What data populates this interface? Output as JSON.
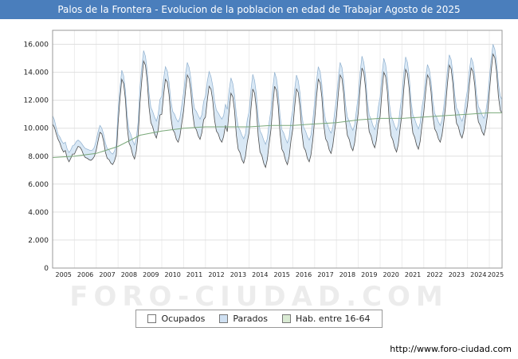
{
  "title": "Palos de la Frontera - Evolucion de la poblacion en edad de Trabajar Agosto de 2025",
  "title_bar_color": "#4a7ebc",
  "watermark": "FORO-CIUDAD.COM",
  "footer": {
    "url": "http://www.foro-ciudad.com"
  },
  "legend": [
    {
      "label": "Ocupados",
      "color": "#ffffff"
    },
    {
      "label": "Parados",
      "color": "#cfe0f2"
    },
    {
      "label": "Hab. entre 16-64",
      "color": "#d9ead3"
    }
  ],
  "chart_data": {
    "type": "area",
    "title": "Palos de la Frontera - Evolucion de la poblacion en edad de Trabajar Agosto de 2025",
    "x_start": "2005-01",
    "x_end": "2025-08",
    "x_tick_labels": [
      "2005",
      "2006",
      "2007",
      "2008",
      "2009",
      "2010",
      "2011",
      "2012",
      "2013",
      "2014",
      "2015",
      "2016",
      "2017",
      "2018",
      "2019",
      "2020",
      "2021",
      "2022",
      "2023",
      "2024",
      "2025"
    ],
    "ylim": [
      0,
      17000
    ],
    "y_ticks": [
      0,
      2000,
      4000,
      6000,
      8000,
      10000,
      12000,
      14000,
      16000
    ],
    "y_tick_labels": [
      "0",
      "2.000",
      "4.000",
      "6.000",
      "8.000",
      "10.000",
      "12.000",
      "14.000",
      "16.000"
    ],
    "grid": true,
    "legend_position": "bottom",
    "colors": {
      "ocupados_line": "#4d4d4d",
      "parados_line": "#8fb0cf",
      "parados_fill": "#d9e8f5",
      "hab_line": "#7aa97a"
    },
    "series": [
      {
        "name": "Ocupados",
        "role": "lower-line",
        "monthly_values": [
          10300,
          10050,
          9600,
          9200,
          8950,
          8550,
          8300,
          8400,
          7850,
          7600,
          7850,
          8150,
          8150,
          8450,
          8700,
          8650,
          8450,
          8100,
          7900,
          7850,
          7750,
          7700,
          7800,
          8000,
          8450,
          9100,
          9700,
          9600,
          9100,
          8300,
          7850,
          7750,
          7500,
          7400,
          7650,
          8100,
          10350,
          12100,
          13500,
          13200,
          12100,
          10100,
          8950,
          8650,
          8100,
          7800,
          8350,
          9500,
          11800,
          13400,
          14800,
          14500,
          13400,
          11500,
          10400,
          10100,
          9600,
          9300,
          9850,
          10950,
          11000,
          12400,
          13500,
          13300,
          12400,
          10800,
          9900,
          9700,
          9200,
          9000,
          9450,
          10350,
          11250,
          12650,
          13800,
          13550,
          12650,
          11050,
          10100,
          9900,
          9450,
          9200,
          9650,
          10600,
          10800,
          12000,
          13000,
          12800,
          12000,
          10600,
          9800,
          9600,
          9200,
          9000,
          9400,
          10200,
          9750,
          11250,
          12500,
          12250,
          11250,
          9500,
          8500,
          8250,
          7750,
          7500,
          8000,
          9000,
          9700,
          11400,
          12800,
          12500,
          11400,
          9450,
          8300,
          8050,
          7500,
          7200,
          7750,
          8900,
          9900,
          11600,
          13000,
          12700,
          11600,
          9650,
          8500,
          8250,
          7700,
          7400,
          7950,
          9100,
          9950,
          11500,
          12800,
          12550,
          11500,
          9700,
          8650,
          8400,
          7850,
          7600,
          8100,
          9150,
          10600,
          12200,
          13500,
          13250,
          12200,
          10300,
          9250,
          9000,
          8450,
          8200,
          8750,
          9800,
          10850,
          12450,
          13800,
          13550,
          12450,
          10550,
          9500,
          9200,
          8650,
          8400,
          8950,
          10000,
          11150,
          12900,
          14300,
          14000,
          12900,
          10900,
          9750,
          9450,
          8900,
          8600,
          9150,
          10300,
          10850,
          12600,
          14000,
          13700,
          12600,
          10600,
          9450,
          9150,
          8600,
          8300,
          8850,
          10000,
          11050,
          12800,
          14200,
          13900,
          12800,
          10800,
          9650,
          9350,
          8800,
          8500,
          9050,
          10200,
          11150,
          12600,
          13800,
          13550,
          12600,
          10900,
          9950,
          9700,
          9250,
          9000,
          9500,
          10450,
          11650,
          13200,
          14500,
          14250,
          13200,
          11400,
          10350,
          10100,
          9550,
          9300,
          9800,
          10850,
          11650,
          13100,
          14300,
          14050,
          13100,
          11400,
          10450,
          10200,
          9750,
          9500,
          10000,
          10950,
          12550,
          14050,
          15300,
          15050,
          14050,
          12300,
          11300,
          11050
        ]
      },
      {
        "name": "Parados",
        "role": "stacked-band-on-Ocupados",
        "monthly_values": [
          600,
          540,
          420,
          360,
          420,
          540,
          600,
          600,
          660,
          660,
          600,
          600,
          650,
          600,
          450,
          400,
          450,
          600,
          650,
          650,
          700,
          700,
          650,
          650,
          700,
          650,
          500,
          400,
          500,
          650,
          700,
          700,
          750,
          750,
          700,
          700,
          900,
          800,
          650,
          550,
          650,
          800,
          900,
          900,
          1000,
          1000,
          900,
          900,
          1100,
          1000,
          750,
          650,
          750,
          1000,
          1100,
          1100,
          1200,
          1200,
          1100,
          1100,
          1300,
          1150,
          900,
          800,
          900,
          1150,
          1300,
          1300,
          1450,
          1450,
          1300,
          1300,
          1300,
          1150,
          900,
          800,
          900,
          1150,
          1300,
          1300,
          1450,
          1450,
          1300,
          1300,
          1500,
          1350,
          1050,
          900,
          1050,
          1350,
          1500,
          1500,
          1650,
          1650,
          1500,
          1500,
          1600,
          1450,
          1100,
          950,
          1100,
          1450,
          1600,
          1600,
          1750,
          1750,
          1600,
          1600,
          1500,
          1350,
          1050,
          900,
          1050,
          1350,
          1500,
          1500,
          1650,
          1650,
          1500,
          1500,
          1400,
          1250,
          1000,
          850,
          1000,
          1250,
          1400,
          1400,
          1550,
          1550,
          1400,
          1400,
          1400,
          1250,
          1000,
          850,
          1000,
          1250,
          1400,
          1400,
          1550,
          1550,
          1400,
          1400,
          1300,
          1150,
          900,
          800,
          900,
          1150,
          1300,
          1300,
          1450,
          1450,
          1300,
          1300,
          1300,
          1150,
          900,
          800,
          900,
          1150,
          1300,
          1300,
          1450,
          1450,
          1300,
          1300,
          1200,
          1100,
          850,
          700,
          850,
          1100,
          1200,
          1200,
          1300,
          1300,
          1200,
          1200,
          1400,
          1250,
          1000,
          850,
          1000,
          1250,
          1400,
          1400,
          1550,
          1550,
          1400,
          1400,
          1300,
          1150,
          900,
          800,
          900,
          1150,
          1300,
          1300,
          1450,
          1450,
          1300,
          1300,
          1100,
          1000,
          750,
          650,
          750,
          1000,
          1100,
          1100,
          1200,
          1200,
          1100,
          1100,
          1100,
          1000,
          750,
          650,
          750,
          1000,
          1100,
          1100,
          1200,
          1200,
          1100,
          1100,
          1100,
          1000,
          750,
          650,
          750,
          1000,
          1100,
          1100,
          1200,
          1200,
          1100,
          1100,
          1000,
          900,
          700,
          600,
          700,
          900,
          1000,
          1000
        ]
      },
      {
        "name": "Hab. entre 16-64",
        "role": "smooth-line",
        "yearly_values": [
          7900,
          8000,
          8200,
          8700,
          9500,
          9800,
          10000,
          10100,
          10100,
          10100,
          10200,
          10200,
          10300,
          10400,
          10600,
          10700,
          10700,
          10800,
          10900,
          11000,
          11100
        ]
      }
    ]
  }
}
